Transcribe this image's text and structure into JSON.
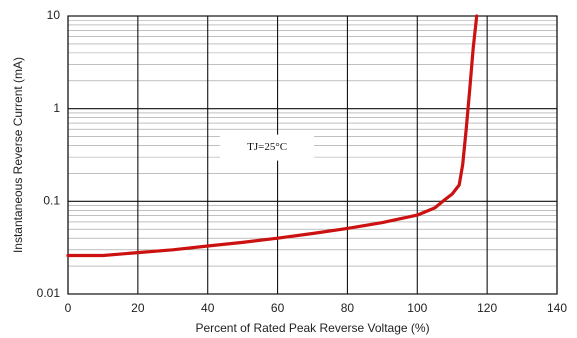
{
  "chart_data": {
    "type": "line",
    "xlabel": "Percent of Rated Peak Reverse Voltage (%)",
    "ylabel": "Instantaneous Reverse Current (mA)",
    "xlim": [
      0,
      140
    ],
    "ylim": [
      0.01,
      10
    ],
    "yscale": "log",
    "x_ticks": [
      0,
      20,
      40,
      60,
      80,
      100,
      120,
      140
    ],
    "x_tick_labels": [
      "0",
      "20",
      "40",
      "60",
      "80",
      "100",
      "120",
      "140"
    ],
    "y_ticks": [
      0.01,
      0.1,
      1,
      10
    ],
    "y_tick_labels": [
      "0.01",
      "0.1",
      "1",
      "10"
    ],
    "grid": true,
    "series_color": "#cc1111",
    "annotation": {
      "text": "TJ=25°C",
      "x": 57,
      "y": 0.38
    },
    "series": [
      {
        "x": [
          0,
          10,
          20,
          30,
          40,
          50,
          60,
          70,
          80,
          90,
          100,
          105,
          108,
          110,
          112,
          113,
          114,
          115,
          116,
          117
        ],
        "y": [
          0.026,
          0.026,
          0.028,
          0.03,
          0.033,
          0.036,
          0.04,
          0.045,
          0.051,
          0.059,
          0.071,
          0.085,
          0.105,
          0.12,
          0.15,
          0.25,
          0.6,
          1.6,
          4.5,
          10
        ]
      }
    ]
  }
}
